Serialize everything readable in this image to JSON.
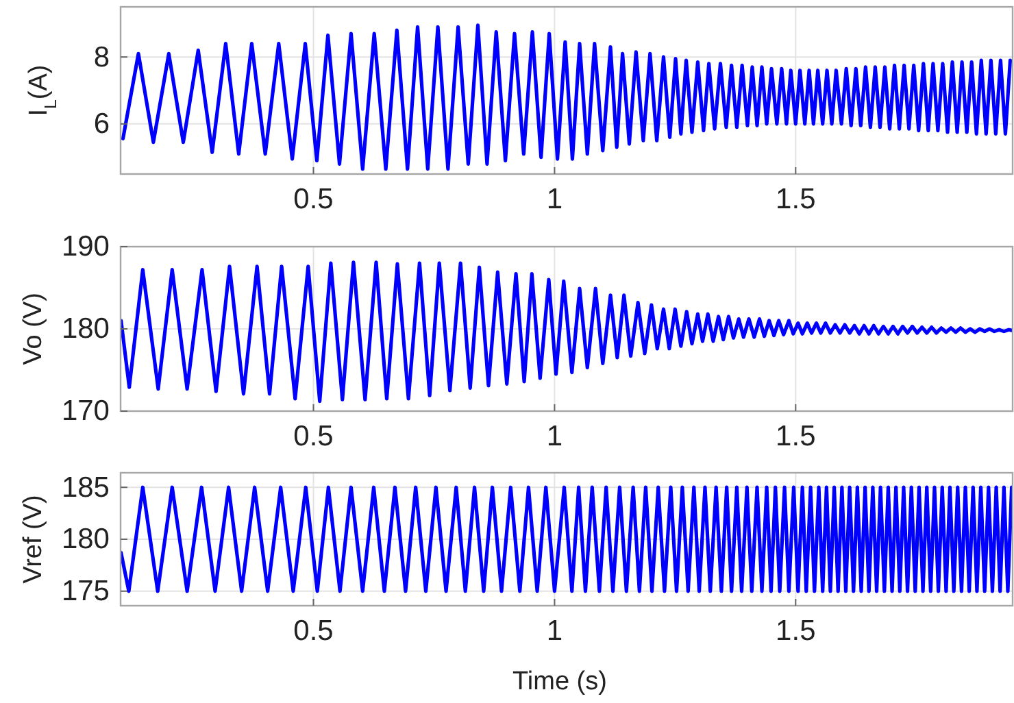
{
  "chart_data": [
    {
      "type": "line",
      "ylabel": "I$_{L}$(A)",
      "xlim": [
        0.1,
        1.95
      ],
      "ylim": [
        4.5,
        9.5
      ],
      "xticks": [
        0.5,
        1,
        1.5
      ],
      "yticks": [
        6,
        8
      ],
      "grid": true,
      "tick_labels": "xy",
      "line_style": "solid",
      "marker": "none",
      "x": [
        0.105,
        0.137,
        0.168,
        0.2,
        0.23,
        0.261,
        0.29,
        0.318,
        0.345,
        0.372,
        0.4,
        0.428,
        0.456,
        0.483,
        0.507,
        0.53,
        0.554,
        0.578,
        0.602,
        0.626,
        0.65,
        0.673,
        0.695,
        0.716,
        0.737,
        0.758,
        0.779,
        0.8,
        0.821,
        0.841,
        0.86,
        0.879,
        0.898,
        0.917,
        0.936,
        0.954,
        0.972,
        0.989,
        1.006,
        1.022,
        1.037,
        1.052,
        1.068,
        1.083,
        1.1,
        1.116,
        1.129,
        1.141,
        1.155,
        1.169,
        1.184,
        1.198,
        1.212,
        1.226,
        1.239,
        1.251,
        1.262,
        1.273,
        1.285,
        1.297,
        1.309,
        1.32,
        1.332,
        1.344,
        1.356,
        1.367,
        1.378,
        1.389,
        1.4,
        1.41,
        1.42,
        1.43,
        1.44,
        1.45,
        1.461,
        1.471,
        1.481,
        1.49,
        1.5,
        1.509,
        1.519,
        1.528,
        1.537,
        1.546,
        1.556,
        1.565,
        1.575,
        1.584,
        1.595,
        1.605,
        1.615,
        1.625,
        1.635,
        1.645,
        1.655,
        1.665,
        1.675,
        1.685,
        1.695,
        1.705,
        1.715,
        1.725,
        1.735,
        1.745,
        1.755,
        1.765,
        1.775,
        1.785,
        1.795,
        1.805,
        1.815,
        1.825,
        1.835,
        1.845,
        1.855,
        1.865,
        1.875,
        1.885,
        1.895,
        1.905,
        1.915,
        1.925,
        1.935,
        1.945
      ],
      "series": [
        {
          "color": "#0000ff",
          "values": [
            5.56,
            8.1,
            5.45,
            8.1,
            5.45,
            8.2,
            5.15,
            8.4,
            5.1,
            8.4,
            5.1,
            8.4,
            4.95,
            8.4,
            4.9,
            8.65,
            4.8,
            8.7,
            4.65,
            8.7,
            4.65,
            8.8,
            4.65,
            8.9,
            4.65,
            8.9,
            4.65,
            8.9,
            4.8,
            8.95,
            4.8,
            8.75,
            4.9,
            8.7,
            5.1,
            8.75,
            5.0,
            8.7,
            4.95,
            8.45,
            4.95,
            8.4,
            5.1,
            8.4,
            5.2,
            8.3,
            5.3,
            8.1,
            5.4,
            8.15,
            5.5,
            8.1,
            5.5,
            8.0,
            5.6,
            7.95,
            5.7,
            7.9,
            5.75,
            7.85,
            5.8,
            7.8,
            5.85,
            7.8,
            5.9,
            7.75,
            5.9,
            7.75,
            5.95,
            7.7,
            5.95,
            7.7,
            6.0,
            7.65,
            6.0,
            7.65,
            6.0,
            7.6,
            6.0,
            7.6,
            6.0,
            7.6,
            6.0,
            7.6,
            6.0,
            7.6,
            6.0,
            7.6,
            6.0,
            7.65,
            5.95,
            7.65,
            5.95,
            7.7,
            5.9,
            7.7,
            5.9,
            7.7,
            5.85,
            7.75,
            5.85,
            7.75,
            5.85,
            7.75,
            5.8,
            7.8,
            5.8,
            7.8,
            5.8,
            7.8,
            5.75,
            7.85,
            5.75,
            7.85,
            5.75,
            7.85,
            5.7,
            7.9,
            5.7,
            7.9,
            5.7,
            7.9,
            5.7,
            7.9
          ]
        }
      ]
    },
    {
      "type": "line",
      "ylabel": "Vo (V)",
      "xlim": [
        0.1,
        1.95
      ],
      "ylim": [
        170,
        190
      ],
      "xticks": [
        0.5,
        1,
        1.5
      ],
      "yticks": [
        170,
        180,
        190
      ],
      "grid": true,
      "tick_labels": "xy",
      "line_style": "solid",
      "marker": "none",
      "x": [
        0.101,
        0.118,
        0.146,
        0.178,
        0.207,
        0.238,
        0.269,
        0.298,
        0.326,
        0.355,
        0.383,
        0.409,
        0.434,
        0.462,
        0.489,
        0.513,
        0.536,
        0.56,
        0.583,
        0.607,
        0.63,
        0.652,
        0.674,
        0.697,
        0.72,
        0.741,
        0.761,
        0.783,
        0.805,
        0.825,
        0.844,
        0.863,
        0.882,
        0.901,
        0.92,
        0.937,
        0.953,
        0.97,
        0.988,
        1.003,
        1.019,
        1.036,
        1.052,
        1.068,
        1.085,
        1.1,
        1.116,
        1.13,
        1.144,
        1.158,
        1.173,
        1.187,
        1.201,
        1.213,
        1.226,
        1.238,
        1.25,
        1.262,
        1.274,
        1.285,
        1.297,
        1.307,
        1.318,
        1.329,
        1.34,
        1.35,
        1.361,
        1.371,
        1.382,
        1.392,
        1.403,
        1.414,
        1.425,
        1.435,
        1.445,
        1.455,
        1.465,
        1.475,
        1.486,
        1.495,
        1.505,
        1.514,
        1.524,
        1.533,
        1.543,
        1.552,
        1.562,
        1.572,
        1.582,
        1.592,
        1.602,
        1.612,
        1.622,
        1.632,
        1.642,
        1.652,
        1.662,
        1.672,
        1.682,
        1.692,
        1.702,
        1.712,
        1.722,
        1.732,
        1.742,
        1.752,
        1.762,
        1.772,
        1.782,
        1.792,
        1.802,
        1.812,
        1.822,
        1.832,
        1.842,
        1.852,
        1.862,
        1.872,
        1.882,
        1.892,
        1.902,
        1.912,
        1.922,
        1.932,
        1.942,
        1.95
      ],
      "series": [
        {
          "color": "#0000ff",
          "values": [
            181,
            172.9,
            187.2,
            172.7,
            187.2,
            172.7,
            187.2,
            172.4,
            187.6,
            172.1,
            187.6,
            172.1,
            187.6,
            171.5,
            187.6,
            171.2,
            188.0,
            171.4,
            188.1,
            171.4,
            188.1,
            171.5,
            187.9,
            171.5,
            188.0,
            171.9,
            188.0,
            172.5,
            188.0,
            172.8,
            187.5,
            173.1,
            186.9,
            173.3,
            186.7,
            173.6,
            186.7,
            174.0,
            186.0,
            174.5,
            185.8,
            174.7,
            184.9,
            175.3,
            184.9,
            175.8,
            184.1,
            176.5,
            184.1,
            176.7,
            183.2,
            177.0,
            182.9,
            177.6,
            182.4,
            177.6,
            182.4,
            177.9,
            182.1,
            178.2,
            181.8,
            178.5,
            181.8,
            178.5,
            181.5,
            178.7,
            181.5,
            178.9,
            181.2,
            179.0,
            181.2,
            179.0,
            181.2,
            179.1,
            181.0,
            179.2,
            181.0,
            179.3,
            181.0,
            179.4,
            180.7,
            179.4,
            180.7,
            179.5,
            180.7,
            179.5,
            180.7,
            179.5,
            180.5,
            179.5,
            180.5,
            179.5,
            180.4,
            179.4,
            180.4,
            179.4,
            180.4,
            179.4,
            180.3,
            179.4,
            180.3,
            179.4,
            180.3,
            179.5,
            180.3,
            179.5,
            180.2,
            179.5,
            180.2,
            179.5,
            180.1,
            179.6,
            180.1,
            179.6,
            180.1,
            179.6,
            180.0,
            179.6,
            180.0,
            179.7,
            180.0,
            179.7,
            179.9,
            179.7,
            179.9,
            179.8
          ]
        }
      ]
    },
    {
      "type": "line",
      "xlabel": "Time (s)",
      "ylabel": "Vref (V)",
      "xlim": [
        0.1,
        1.95
      ],
      "ylim": [
        173.6,
        186.4
      ],
      "xticks": [
        0.5,
        1,
        1.5
      ],
      "yticks": [
        175,
        180,
        185
      ],
      "grid": true,
      "tick_labels": "xy",
      "line_style": "solid",
      "marker": "none",
      "x": [
        0.101,
        0.117,
        0.146,
        0.177,
        0.207,
        0.238,
        0.268,
        0.296,
        0.324,
        0.351,
        0.378,
        0.405,
        0.432,
        0.458,
        0.484,
        0.508,
        0.531,
        0.555,
        0.578,
        0.602,
        0.625,
        0.647,
        0.669,
        0.691,
        0.712,
        0.733,
        0.754,
        0.775,
        0.796,
        0.815,
        0.834,
        0.853,
        0.871,
        0.89,
        0.909,
        0.928,
        0.946,
        0.964,
        0.982,
        1.0,
        1.02,
        1.036,
        1.05,
        1.064,
        1.078,
        1.093,
        1.107,
        1.121,
        1.135,
        1.149,
        1.163,
        1.176,
        1.189,
        1.202,
        1.215,
        1.228,
        1.241,
        1.253,
        1.265,
        1.277,
        1.289,
        1.3,
        1.312,
        1.323,
        1.335,
        1.346,
        1.357,
        1.367,
        1.378,
        1.388,
        1.399,
        1.409,
        1.42,
        1.43,
        1.44,
        1.449,
        1.458,
        1.467,
        1.477,
        1.486,
        1.496,
        1.505,
        1.514,
        1.522,
        1.531,
        1.539,
        1.548,
        1.556,
        1.564,
        1.572,
        1.58,
        1.588,
        1.596,
        1.604,
        1.612,
        1.62,
        1.628,
        1.636,
        1.644,
        1.652,
        1.66,
        1.668,
        1.676,
        1.684,
        1.692,
        1.7,
        1.708,
        1.716,
        1.724,
        1.732,
        1.74,
        1.748,
        1.756,
        1.764,
        1.772,
        1.78,
        1.788,
        1.796,
        1.804,
        1.812,
        1.82,
        1.828,
        1.836,
        1.844,
        1.852,
        1.86,
        1.868,
        1.876,
        1.884,
        1.892,
        1.9,
        1.908,
        1.916,
        1.924,
        1.932,
        1.94,
        1.948
      ],
      "series": [
        {
          "color": "#0000ff",
          "values": [
            178.7,
            175,
            185,
            175,
            185,
            175,
            185,
            175,
            185,
            175,
            185,
            175,
            185,
            175,
            185,
            175,
            185,
            175,
            185,
            175,
            185,
            175,
            185,
            175,
            185,
            175,
            185,
            175,
            185,
            175,
            185,
            175,
            185,
            175,
            185,
            175,
            185,
            175,
            185,
            175,
            185,
            175,
            185,
            175,
            185,
            175,
            185,
            175,
            185,
            175,
            185,
            175,
            185,
            175,
            185,
            175,
            185,
            175,
            185,
            175,
            185,
            175,
            185,
            175,
            185,
            175,
            185,
            175,
            185,
            175,
            185,
            175,
            185,
            175,
            185,
            175,
            185,
            175,
            185,
            175,
            185,
            175,
            185,
            175,
            185,
            175,
            185,
            175,
            185,
            175,
            185,
            175,
            185,
            175,
            185,
            175,
            185,
            175,
            185,
            175,
            185,
            175,
            185,
            175,
            185,
            175,
            185,
            175,
            185,
            175,
            185,
            175,
            185,
            175,
            185,
            175,
            185,
            175,
            185,
            175,
            185,
            175,
            185,
            175,
            185,
            175,
            185,
            175,
            185,
            175,
            185,
            175,
            185,
            175,
            185,
            175,
            185
          ]
        }
      ]
    }
  ]
}
